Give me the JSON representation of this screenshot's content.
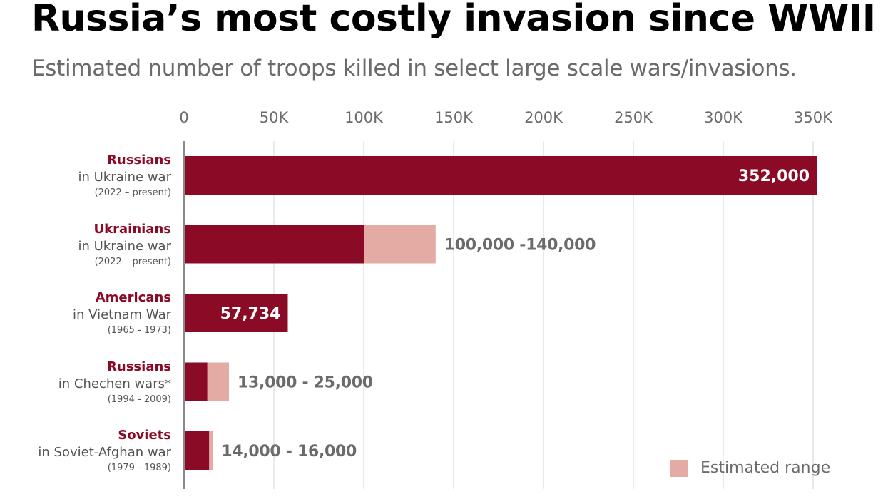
{
  "header": {
    "title": "Russia’s most costly invasion since WWII",
    "subtitle": "Estimated number of troops killed in select large scale wars/invasions."
  },
  "colors": {
    "bar": "#8b0b26",
    "range": "#e3aba4",
    "grid": "#e3e3e3",
    "axis": "#8a8a8a",
    "value_text_inside": "#ffffff",
    "value_text_outside": "#6b6b6b"
  },
  "chart_data": {
    "type": "bar",
    "orientation": "horizontal",
    "stacked_range": true,
    "xlim": [
      0,
      350000
    ],
    "x_ticks": [
      0,
      50000,
      100000,
      150000,
      200000,
      250000,
      300000,
      350000
    ],
    "x_tick_labels": [
      "0",
      "50K",
      "100K",
      "150K",
      "200K",
      "250K",
      "300K",
      "350K"
    ],
    "x_axis_position": "top",
    "grid": true,
    "legend": {
      "label": "Estimated range",
      "position": "bottom-right"
    },
    "rows": [
      {
        "group": "Russians",
        "conflict": "in Ukraine war",
        "years": "(2022 – present)",
        "low": 352000,
        "high": 352000,
        "value_label": "352,000",
        "label_position": "inside"
      },
      {
        "group": "Ukrainians",
        "conflict": "in Ukraine war",
        "years": "(2022 – present)",
        "low": 100000,
        "high": 140000,
        "value_label": "100,000 -140,000",
        "label_position": "outside"
      },
      {
        "group": "Americans",
        "conflict": "in Vietnam War",
        "years": "(1965 - 1973)",
        "low": 57734,
        "high": 57734,
        "value_label": "57,734",
        "label_position": "inside"
      },
      {
        "group": "Russians",
        "conflict": "in Chechen wars*",
        "years": "(1994 - 2009)",
        "low": 13000,
        "high": 25000,
        "value_label": "13,000 - 25,000",
        "label_position": "outside"
      },
      {
        "group": "Soviets",
        "conflict": "in Soviet-Afghan war",
        "years": "(1979 - 1989)",
        "low": 14000,
        "high": 16000,
        "value_label": "14,000 - 16,000",
        "label_position": "outside"
      }
    ]
  }
}
